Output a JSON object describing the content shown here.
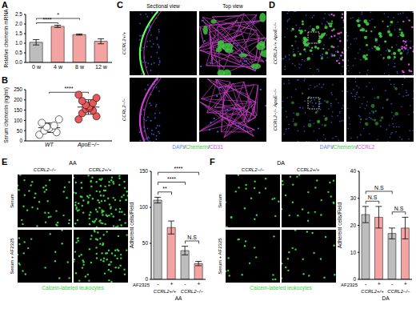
{
  "chart_data": [
    {
      "panel": "A",
      "type": "bar",
      "y_label": "Relative chemerin mRNA",
      "categories": [
        "0 w",
        "4 w",
        "8 w",
        "12 w"
      ],
      "values": [
        1.05,
        1.88,
        1.45,
        1.1
      ],
      "errors": [
        0.14,
        0.06,
        0.03,
        0.13
      ],
      "colors": [
        "#bdbdbd",
        "#f4a3a3",
        "#f4a3a3",
        "#f4a3a3"
      ],
      "ylim": [
        0,
        2.5
      ],
      "yticks": [
        {
          "value": 0,
          "label": "0.0"
        },
        0.5,
        {
          "value": 1,
          "label": "1.0"
        },
        1.5,
        {
          "value": 2,
          "label": "2.0"
        },
        2.5
      ],
      "comparisons": [
        {
          "pair": [
            0,
            1
          ],
          "label": "****"
        },
        {
          "pair": [
            0,
            2
          ],
          "label": "*"
        }
      ]
    },
    {
      "panel": "B",
      "type": "scatter",
      "y_label": "Serum chemerin (ng/ml)",
      "series": [
        {
          "name": "WT",
          "color": "#ffffff",
          "marker": "circle",
          "values": [
            30,
            42,
            50,
            58,
            62,
            68,
            75,
            88,
            105
          ]
        },
        {
          "name": "ApoE−/−",
          "color": "#e8585a",
          "marker": "circle",
          "values": [
            105,
            120,
            135,
            148,
            155,
            160,
            168,
            175,
            185,
            195,
            210,
            225
          ]
        }
      ],
      "ylim": [
        0,
        250
      ],
      "yticks": [
        0,
        50,
        100,
        150,
        200,
        250
      ],
      "comparisons": [
        {
          "pair": [
            0,
            1
          ],
          "label": "****"
        }
      ]
    },
    {
      "type": "bar",
      "y_label": "Adherent cells/Field",
      "x_label": "AF2325",
      "categories": [
        "-",
        "+",
        "-",
        "+"
      ],
      "groups": [
        {
          "label": "CCRL2+/+",
          "pair": [
            0,
            1
          ]
        },
        {
          "label": "CCRL2−/−",
          "pair": [
            2,
            3
          ]
        }
      ],
      "subtitle": "AA",
      "values": [
        110,
        72,
        40,
        22
      ],
      "errors": [
        4,
        9,
        6,
        3
      ],
      "colors": [
        "#bdbdbd",
        "#f4a3a3",
        "#bdbdbd",
        "#f4a3a3"
      ],
      "ylim": [
        0,
        150
      ],
      "yticks": [
        0,
        50,
        100,
        150
      ],
      "comparisons": [
        {
          "pair": [
            0,
            1
          ],
          "label": "**"
        },
        {
          "pair": [
            0,
            2
          ],
          "label": "****"
        },
        {
          "pair": [
            0,
            3
          ],
          "label": "****"
        },
        {
          "pair": [
            2,
            3
          ],
          "label": "N.S"
        }
      ]
    },
    {
      "type": "bar",
      "y_label": "Adherent cells/Field",
      "x_label": "AF2325",
      "categories": [
        "-",
        "+",
        "-",
        "+"
      ],
      "groups": [
        {
          "label": "CCRL2+/+",
          "pair": [
            0,
            1
          ]
        },
        {
          "label": "CCRL2−/−",
          "pair": [
            2,
            3
          ]
        }
      ],
      "subtitle": "DA",
      "values": [
        24,
        23,
        17,
        19
      ],
      "errors": [
        3,
        4,
        2,
        4
      ],
      "colors": [
        "#bdbdbd",
        "#f4a3a3",
        "#bdbdbd",
        "#f4a3a3"
      ],
      "ylim": [
        0,
        40
      ],
      "yticks": [
        0,
        10,
        20,
        30,
        40
      ],
      "comparisons": [
        {
          "pair": [
            0,
            1
          ],
          "label": "N.S"
        },
        {
          "pair": [
            2,
            3
          ],
          "label": "N.S"
        },
        {
          "pair": [
            0,
            2
          ],
          "label": "N.S"
        }
      ]
    }
  ],
  "images": [
    {
      "panel": "C",
      "columns": [
        "Sectional view",
        "Top view"
      ],
      "rows": [
        "CCRL2+/+",
        "CCRL2−/−"
      ],
      "caption": "DAPI/Chemerin/CD31",
      "colors": [
        "#5b86ff",
        "#3fd13f",
        "#e04be0"
      ]
    },
    {
      "panel": "D",
      "rows": [
        "CCRL2+/+ ApoE−/−",
        "CCRL2−/− ApoE−/−"
      ],
      "caption": "DAPI/Chemerin/CCRL2",
      "colors": [
        "#5b86ff",
        "#3fd13f",
        "#e04be0"
      ]
    },
    {
      "panel": "E",
      "title": "AA",
      "columns": [
        "CCRL2−/−",
        "CCRL2+/+"
      ],
      "rows": [
        "Serum",
        "Serum + AF2325"
      ],
      "caption": "Calcein-labeled leukocytes",
      "color": "#3fd13f"
    },
    {
      "panel": "F",
      "title": "DA",
      "columns": [
        "CCRL2−/−",
        "CCRL2+/+"
      ],
      "rows": [
        "Serum",
        "Serum + AF2325"
      ],
      "caption": "Calcein-labeled leukocytes",
      "color": "#3fd13f"
    }
  ]
}
